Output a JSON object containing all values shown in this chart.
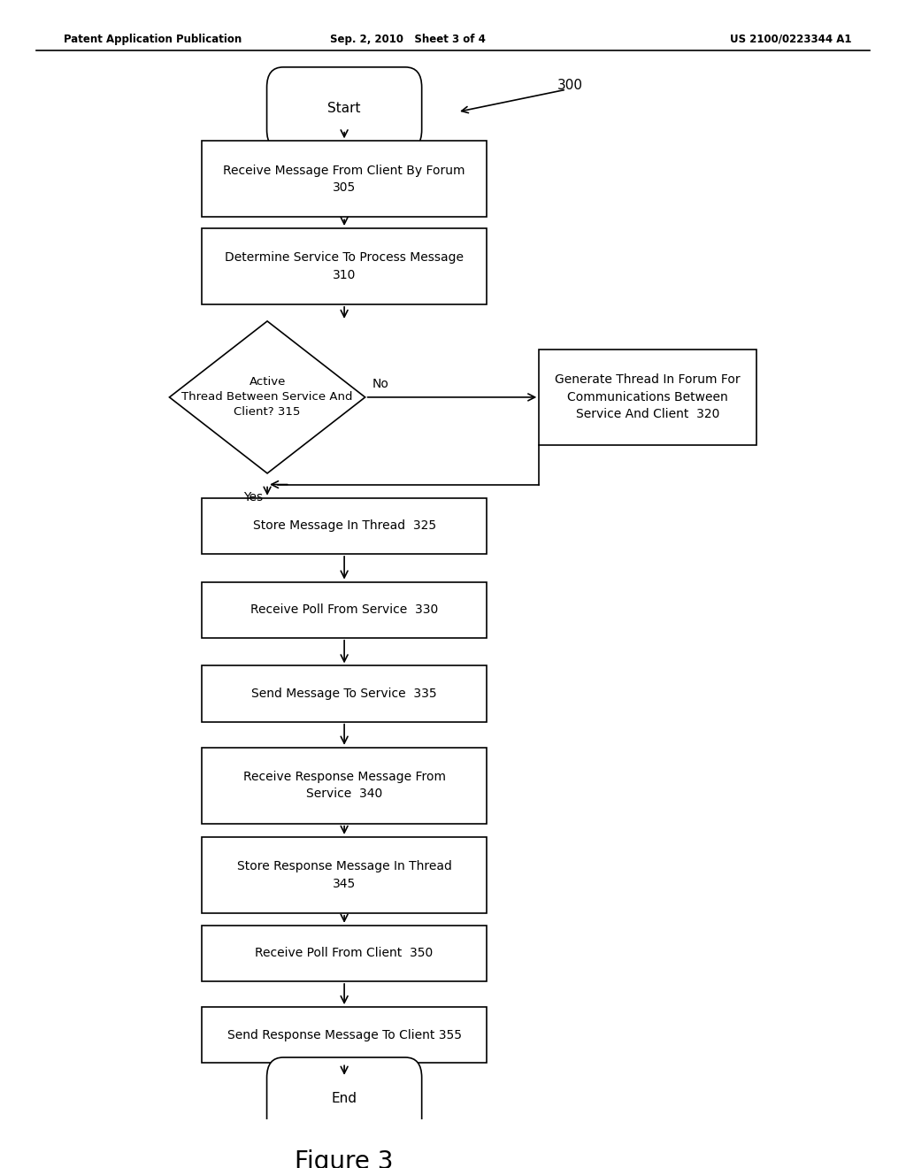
{
  "bg_color": "#ffffff",
  "header_left": "Patent Application Publication",
  "header_mid": "Sep. 2, 2010   Sheet 3 of 4",
  "header_right": "US 2100/0223344 A1",
  "figure_label": "Figure 3",
  "diagram_label": "300"
}
